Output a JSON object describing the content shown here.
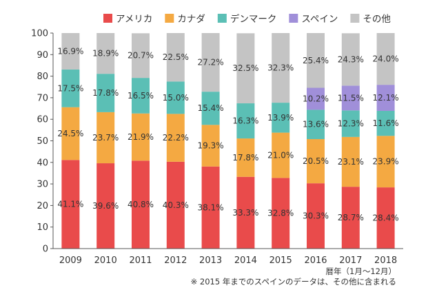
{
  "chart_data": {
    "type": "bar",
    "stacked": true,
    "categories": [
      "2009",
      "2010",
      "2011",
      "2012",
      "2013",
      "2014",
      "2015",
      "2016",
      "2017",
      "2018"
    ],
    "ylim": [
      0,
      100
    ],
    "yticks": [
      0,
      10,
      20,
      30,
      40,
      50,
      60,
      70,
      80,
      90,
      100
    ],
    "grid": false,
    "legend_position": "top",
    "series": [
      {
        "name": "アメリカ",
        "color": "#E94B4B",
        "values": [
          41.1,
          39.6,
          40.8,
          40.3,
          38.1,
          33.3,
          32.8,
          30.3,
          28.7,
          28.4
        ],
        "labels": [
          "41.1%",
          "39.6%",
          "40.8%",
          "40.3%",
          "38.1%",
          "33.3%",
          "32.8%",
          "30.3%",
          "28.7%",
          "28.4%"
        ]
      },
      {
        "name": "カナダ",
        "color": "#F4A942",
        "values": [
          24.5,
          23.7,
          21.9,
          22.2,
          19.3,
          17.8,
          21.0,
          20.5,
          23.1,
          23.9
        ],
        "labels": [
          "24.5%",
          "23.7%",
          "21.9%",
          "22.2%",
          "19.3%",
          "17.8%",
          "21.0%",
          "20.5%",
          "23.1%",
          "23.9%"
        ]
      },
      {
        "name": "デンマーク",
        "color": "#5BBFB5",
        "values": [
          17.5,
          17.8,
          16.5,
          15.0,
          15.4,
          16.3,
          13.9,
          13.6,
          12.3,
          11.6
        ],
        "labels": [
          "17.5%",
          "17.8%",
          "16.5%",
          "15.0%",
          "15.4%",
          "16.3%",
          "13.9%",
          "13.6%",
          "12.3%",
          "11.6%"
        ]
      },
      {
        "name": "スペイン",
        "color": "#A08FD9",
        "values": [
          0,
          0,
          0,
          0,
          0,
          0,
          0,
          10.2,
          11.5,
          12.1
        ],
        "labels": [
          "",
          "",
          "",
          "",
          "",
          "",
          "",
          "10.2%",
          "11.5%",
          "12.1%"
        ]
      },
      {
        "name": "その他",
        "color": "#C4C4C4",
        "values": [
          16.9,
          18.9,
          20.7,
          22.5,
          27.2,
          32.5,
          32.3,
          25.4,
          24.3,
          24.0
        ],
        "labels": [
          "16.9%",
          "18.9%",
          "20.7%",
          "22.5%",
          "27.2%",
          "32.5%",
          "32.3%",
          "25.4%",
          "24.3%",
          "24.0%"
        ]
      }
    ],
    "xlabel": "暦年（1月～12月）",
    "note": "※ 2015 年までのスペインのデータは、その他に含まれる"
  }
}
